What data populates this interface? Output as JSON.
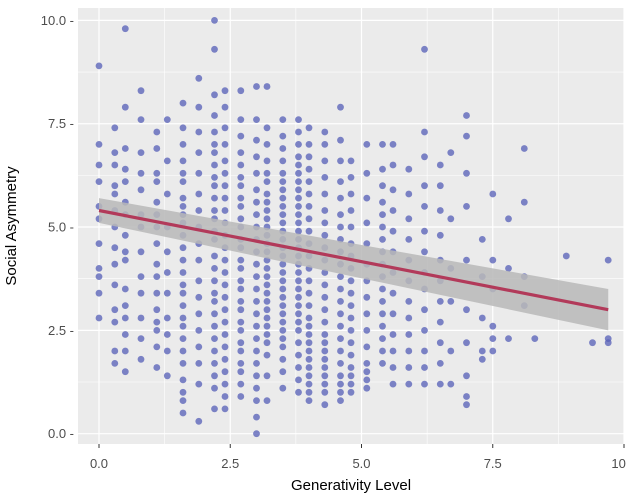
{
  "chart_data": {
    "type": "scatter",
    "title": "",
    "xlabel": "Generativity Level",
    "ylabel": "Social Asymmetry",
    "xlim": [
      -0.4,
      10.0
    ],
    "ylim": [
      -0.25,
      10.3
    ],
    "xticks": [
      0,
      2.5,
      5,
      7.5,
      10
    ],
    "xtick_labels": [
      "0.0",
      "2.5",
      "5.0",
      "7.5",
      "10.0"
    ],
    "yticks": [
      0,
      2.5,
      5,
      7.5,
      10
    ],
    "ytick_labels": [
      "0.0 -",
      "2.5 -",
      "5.0 -",
      "7.5 -",
      "10.0 -"
    ],
    "grid": true,
    "colors": {
      "panel": "#ebebeb",
      "grid": "#ffffff",
      "points": "#5a63b8",
      "fit_line": "#b23a5a",
      "confidence_band": "#b8b8b8"
    },
    "trend": {
      "type": "linear",
      "x": [
        0.0,
        9.7
      ],
      "y": [
        5.4,
        3.0
      ],
      "ci_low": [
        5.1,
        2.5
      ],
      "ci_high": [
        5.7,
        3.5
      ]
    },
    "points_x": [
      0.0,
      0.0,
      0.0,
      0.0,
      0.0,
      0.0,
      0.0,
      0.0,
      0.0,
      0.0,
      0.0,
      0.3,
      0.3,
      0.3,
      0.3,
      0.3,
      0.3,
      0.3,
      0.3,
      0.3,
      0.3,
      0.3,
      0.3,
      0.3,
      0.3,
      0.5,
      0.5,
      0.5,
      0.5,
      0.5,
      0.5,
      0.5,
      0.5,
      0.5,
      0.5,
      0.5,
      0.5,
      0.5,
      0.5,
      0.5,
      0.5,
      0.8,
      0.8,
      0.8,
      0.8,
      0.8,
      0.8,
      0.8,
      0.8,
      0.8,
      0.8,
      0.8,
      0.8,
      0.8,
      1.1,
      1.1,
      1.1,
      1.1,
      1.1,
      1.1,
      1.1,
      1.1,
      1.1,
      1.1,
      1.1,
      1.1,
      1.1,
      1.1,
      1.1,
      1.1,
      1.3,
      1.3,
      1.3,
      1.3,
      1.3,
      1.3,
      1.3,
      1.3,
      1.3,
      1.3,
      1.3,
      1.6,
      1.6,
      1.6,
      1.6,
      1.6,
      1.6,
      1.6,
      1.6,
      1.6,
      1.6,
      1.6,
      1.6,
      1.6,
      1.6,
      1.6,
      1.6,
      1.6,
      1.6,
      1.6,
      1.6,
      1.6,
      1.6,
      1.6,
      1.6,
      1.6,
      1.6,
      1.9,
      1.9,
      1.9,
      1.9,
      1.9,
      1.9,
      1.9,
      1.9,
      1.9,
      1.9,
      1.9,
      1.9,
      1.9,
      1.9,
      1.9,
      1.9,
      1.9,
      1.9,
      2.2,
      2.2,
      2.2,
      2.2,
      2.2,
      2.2,
      2.2,
      2.2,
      2.2,
      2.2,
      2.2,
      2.2,
      2.2,
      2.2,
      2.2,
      2.2,
      2.2,
      2.2,
      2.2,
      2.2,
      2.2,
      2.2,
      2.2,
      2.2,
      2.2,
      2.2,
      2.2,
      2.2,
      2.4,
      2.4,
      2.4,
      2.4,
      2.4,
      2.4,
      2.4,
      2.4,
      2.4,
      2.4,
      2.4,
      2.4,
      2.4,
      2.4,
      2.4,
      2.4,
      2.4,
      2.4,
      2.4,
      2.4,
      2.4,
      2.4,
      2.4,
      2.4,
      2.4,
      2.7,
      2.7,
      2.7,
      2.7,
      2.7,
      2.7,
      2.7,
      2.7,
      2.7,
      2.7,
      2.7,
      2.7,
      2.7,
      2.7,
      2.7,
      2.7,
      2.7,
      2.7,
      2.7,
      2.7,
      2.7,
      2.7,
      2.7,
      2.7,
      2.7,
      2.7,
      2.7,
      3.0,
      3.0,
      3.0,
      3.0,
      3.0,
      3.0,
      3.0,
      3.0,
      3.0,
      3.0,
      3.0,
      3.0,
      3.0,
      3.0,
      3.0,
      3.0,
      3.0,
      3.0,
      3.0,
      3.0,
      3.0,
      3.0,
      3.0,
      3.0,
      3.0,
      3.2,
      3.2,
      3.2,
      3.2,
      3.2,
      3.2,
      3.2,
      3.2,
      3.2,
      3.2,
      3.2,
      3.2,
      3.2,
      3.2,
      3.2,
      3.2,
      3.2,
      3.2,
      3.2,
      3.2,
      3.2,
      3.2,
      3.2,
      3.2,
      3.2,
      3.2,
      3.2,
      3.2,
      3.5,
      3.5,
      3.5,
      3.5,
      3.5,
      3.5,
      3.5,
      3.5,
      3.5,
      3.5,
      3.5,
      3.5,
      3.5,
      3.5,
      3.5,
      3.5,
      3.5,
      3.5,
      3.5,
      3.5,
      3.5,
      3.5,
      3.5,
      3.5,
      3.5,
      3.5,
      3.5,
      3.5,
      3.5,
      3.8,
      3.8,
      3.8,
      3.8,
      3.8,
      3.8,
      3.8,
      3.8,
      3.8,
      3.8,
      3.8,
      3.8,
      3.8,
      3.8,
      3.8,
      3.8,
      3.8,
      3.8,
      3.8,
      3.8,
      3.8,
      3.8,
      3.8,
      3.8,
      3.8,
      3.8,
      3.8,
      3.8,
      3.8,
      3.8,
      4.0,
      4.0,
      4.0,
      4.0,
      4.0,
      4.0,
      4.0,
      4.0,
      4.0,
      4.0,
      4.0,
      4.0,
      4.0,
      4.0,
      4.0,
      4.0,
      4.0,
      4.0,
      4.0,
      4.0,
      4.0,
      4.0,
      4.0,
      4.0,
      4.0,
      4.0,
      4.3,
      4.3,
      4.3,
      4.3,
      4.3,
      4.3,
      4.3,
      4.3,
      4.3,
      4.3,
      4.3,
      4.3,
      4.3,
      4.3,
      4.3,
      4.3,
      4.3,
      4.3,
      4.3,
      4.3,
      4.3,
      4.3,
      4.3,
      4.3,
      4.6,
      4.6,
      4.6,
      4.6,
      4.6,
      4.6,
      4.6,
      4.6,
      4.6,
      4.6,
      4.6,
      4.6,
      4.6,
      4.6,
      4.6,
      4.6,
      4.6,
      4.6,
      4.6,
      4.6,
      4.6,
      4.6,
      4.8,
      4.8,
      4.8,
      4.8,
      4.8,
      4.8,
      4.8,
      4.8,
      4.8,
      4.8,
      4.8,
      4.8,
      4.8,
      4.8,
      4.8,
      4.8,
      4.8,
      4.8,
      4.8,
      5.1,
      5.1,
      5.1,
      5.1,
      5.1,
      5.1,
      5.1,
      5.1,
      5.1,
      5.1,
      5.1,
      5.1,
      5.1,
      5.1,
      5.1,
      5.4,
      5.4,
      5.4,
      5.4,
      5.4,
      5.4,
      5.4,
      5.4,
      5.4,
      5.4,
      5.4,
      5.4,
      5.4,
      5.4,
      5.4,
      5.4,
      5.4,
      5.6,
      5.6,
      5.6,
      5.6,
      5.6,
      5.6,
      5.6,
      5.6,
      5.6,
      5.6,
      5.6,
      5.6,
      5.6,
      5.9,
      5.9,
      5.9,
      5.9,
      5.9,
      5.9,
      5.9,
      5.9,
      5.9,
      5.9,
      5.9,
      5.9,
      6.2,
      6.2,
      6.2,
      6.2,
      6.2,
      6.2,
      6.2,
      6.2,
      6.2,
      6.2,
      6.2,
      6.2,
      6.2,
      6.2,
      6.5,
      6.5,
      6.5,
      6.5,
      6.5,
      6.5,
      6.5,
      6.5,
      6.5,
      6.5,
      6.5,
      6.7,
      6.7,
      6.7,
      6.7,
      6.7,
      6.7,
      7.0,
      7.0,
      7.0,
      7.0,
      7.0,
      7.0,
      7.0,
      7.0,
      7.0,
      7.0,
      7.3,
      7.3,
      7.3,
      7.3,
      7.3,
      7.5,
      7.5,
      7.5,
      7.5,
      7.5,
      7.5,
      7.8,
      7.8,
      7.8,
      8.1,
      8.1,
      8.1,
      8.1,
      8.3,
      8.9,
      9.4,
      9.7,
      9.7,
      9.7
    ],
    "points_y": [
      8.9,
      7.0,
      6.5,
      6.1,
      5.5,
      5.2,
      4.6,
      4.0,
      3.8,
      3.4,
      2.8,
      7.4,
      6.8,
      6.5,
      6.0,
      5.8,
      5.4,
      5.0,
      4.5,
      4.1,
      3.6,
      3.0,
      2.7,
      2.0,
      1.7,
      9.8,
      7.9,
      6.9,
      6.4,
      6.1,
      5.6,
      5.3,
      4.8,
      4.4,
      4.2,
      3.5,
      3.1,
      2.8,
      2.4,
      2.0,
      1.5,
      8.3,
      7.6,
      6.8,
      6.3,
      5.9,
      5.3,
      5.0,
      4.4,
      3.8,
      3.4,
      2.8,
      2.3,
      1.8,
      7.3,
      6.9,
      6.3,
      6.1,
      5.6,
      5.3,
      5.0,
      4.6,
      4.1,
      3.8,
      3.4,
      3.0,
      2.7,
      2.5,
      2.1,
      1.6,
      7.6,
      6.6,
      5.8,
      5.0,
      4.4,
      3.9,
      3.4,
      2.8,
      2.4,
      2.0,
      1.4,
      8.0,
      7.4,
      7.0,
      6.6,
      6.3,
      6.1,
      5.7,
      5.5,
      5.3,
      5.1,
      4.8,
      4.5,
      4.2,
      3.9,
      3.6,
      3.4,
      3.1,
      2.8,
      2.6,
      2.3,
      2.0,
      1.7,
      1.3,
      1.0,
      0.8,
      0.5,
      8.6,
      7.9,
      7.3,
      6.8,
      6.3,
      5.8,
      5.4,
      5.0,
      4.6,
      4.2,
      3.7,
      3.3,
      2.9,
      2.5,
      2.1,
      1.7,
      1.2,
      0.3,
      10.0,
      9.3,
      8.2,
      7.7,
      7.3,
      7.0,
      6.8,
      6.5,
      6.2,
      6.0,
      5.7,
      5.4,
      5.2,
      4.9,
      4.7,
      4.3,
      4.0,
      3.7,
      3.4,
      3.2,
      2.9,
      2.6,
      2.3,
      2.0,
      1.7,
      1.4,
      1.1,
      0.6,
      8.3,
      7.9,
      7.4,
      7.0,
      6.6,
      6.3,
      6.0,
      5.7,
      5.4,
      5.1,
      4.8,
      4.5,
      4.2,
      3.9,
      3.6,
      3.3,
      3.0,
      2.7,
      2.4,
      2.1,
      1.8,
      1.5,
      1.2,
      0.9,
      0.6,
      8.3,
      7.6,
      7.2,
      6.8,
      6.5,
      6.2,
      6.0,
      5.7,
      5.5,
      5.2,
      5.0,
      4.7,
      4.5,
      4.2,
      4.0,
      3.7,
      3.5,
      3.2,
      3.0,
      2.7,
      2.5,
      2.2,
      2.0,
      1.7,
      1.5,
      1.2,
      0.9,
      8.4,
      7.6,
      7.1,
      6.7,
      6.3,
      5.9,
      5.6,
      5.3,
      5.0,
      4.7,
      4.4,
      4.1,
      3.8,
      3.5,
      3.2,
      2.9,
      2.6,
      2.3,
      2.0,
      1.7,
      1.4,
      1.1,
      0.8,
      0.4,
      0.0,
      8.4,
      7.4,
      7.0,
      6.6,
      6.3,
      6.1,
      5.8,
      5.6,
      5.4,
      5.2,
      5.0,
      4.8,
      4.6,
      4.4,
      4.2,
      4.0,
      3.8,
      3.6,
      3.4,
      3.2,
      3.0,
      2.8,
      2.6,
      2.4,
      2.2,
      1.9,
      1.4,
      0.8,
      7.6,
      7.2,
      6.9,
      6.6,
      6.3,
      6.1,
      5.9,
      5.7,
      5.5,
      5.3,
      5.1,
      4.9,
      4.7,
      4.5,
      4.3,
      4.1,
      3.9,
      3.7,
      3.5,
      3.3,
      3.1,
      2.9,
      2.7,
      2.5,
      2.3,
      2.1,
      1.8,
      1.5,
      1.1,
      7.6,
      7.3,
      7.0,
      6.7,
      6.5,
      6.3,
      6.1,
      5.9,
      5.7,
      5.5,
      5.3,
      5.1,
      4.9,
      4.7,
      4.5,
      4.3,
      4.1,
      3.9,
      3.7,
      3.5,
      3.3,
      3.1,
      2.9,
      2.7,
      2.5,
      2.2,
      1.9,
      1.6,
      1.3,
      1.0,
      7.4,
      7.0,
      6.7,
      6.4,
      6.1,
      5.8,
      5.5,
      5.2,
      4.9,
      4.6,
      4.3,
      4.0,
      3.7,
      3.4,
      3.1,
      2.8,
      2.6,
      2.4,
      2.2,
      2.0,
      1.8,
      1.6,
      1.4,
      1.2,
      1.0,
      0.8,
      7.3,
      7.0,
      6.6,
      6.2,
      5.8,
      5.4,
      5.1,
      4.8,
      4.5,
      4.2,
      3.9,
      3.6,
      3.3,
      3.0,
      2.7,
      2.4,
      2.2,
      2.0,
      1.8,
      1.6,
      1.4,
      1.2,
      1.0,
      0.7,
      7.9,
      7.1,
      6.6,
      6.1,
      5.7,
      5.3,
      5.0,
      4.7,
      4.4,
      4.1,
      3.8,
      3.5,
      3.2,
      2.9,
      2.6,
      2.3,
      2.0,
      1.7,
      1.4,
      1.2,
      1.0,
      0.8,
      6.6,
      6.2,
      5.8,
      5.4,
      5.0,
      4.6,
      4.3,
      4.0,
      3.7,
      3.4,
      3.1,
      2.8,
      2.5,
      2.2,
      1.9,
      1.6,
      1.4,
      1.2,
      1.0,
      7.0,
      6.3,
      5.7,
      5.1,
      4.6,
      4.1,
      3.7,
      3.3,
      2.9,
      2.5,
      2.1,
      1.7,
      1.5,
      1.3,
      1.1,
      7.0,
      6.4,
      6.0,
      5.6,
      5.3,
      5.0,
      4.7,
      4.4,
      4.1,
      3.8,
      3.5,
      3.2,
      2.9,
      2.6,
      2.3,
      2.0,
      1.7,
      7.0,
      6.5,
      5.9,
      5.4,
      4.9,
      4.4,
      3.9,
      3.4,
      2.9,
      2.4,
      2.0,
      1.6,
      1.2,
      6.4,
      5.8,
      5.2,
      4.7,
      4.2,
      3.7,
      3.2,
      2.8,
      2.4,
      2.0,
      1.6,
      1.2,
      9.3,
      7.3,
      6.7,
      6.0,
      5.5,
      4.9,
      4.4,
      3.9,
      3.5,
      3.0,
      2.5,
      2.0,
      1.6,
      1.2,
      6.5,
      6.0,
      5.4,
      4.8,
      4.2,
      3.7,
      3.2,
      2.7,
      2.2,
      1.7,
      1.2,
      6.8,
      5.2,
      4.0,
      3.2,
      2.0,
      1.2,
      7.7,
      7.2,
      6.3,
      5.5,
      4.2,
      3.0,
      2.2,
      1.4,
      0.9,
      0.7,
      4.7,
      3.8,
      2.8,
      2.0,
      1.8,
      5.8,
      4.2,
      3.5,
      2.6,
      2.3,
      2.0,
      5.2,
      4.0,
      2.3,
      6.9,
      5.6,
      3.8,
      3.1,
      2.3,
      4.3,
      2.2,
      4.2,
      2.3,
      2.2
    ]
  }
}
